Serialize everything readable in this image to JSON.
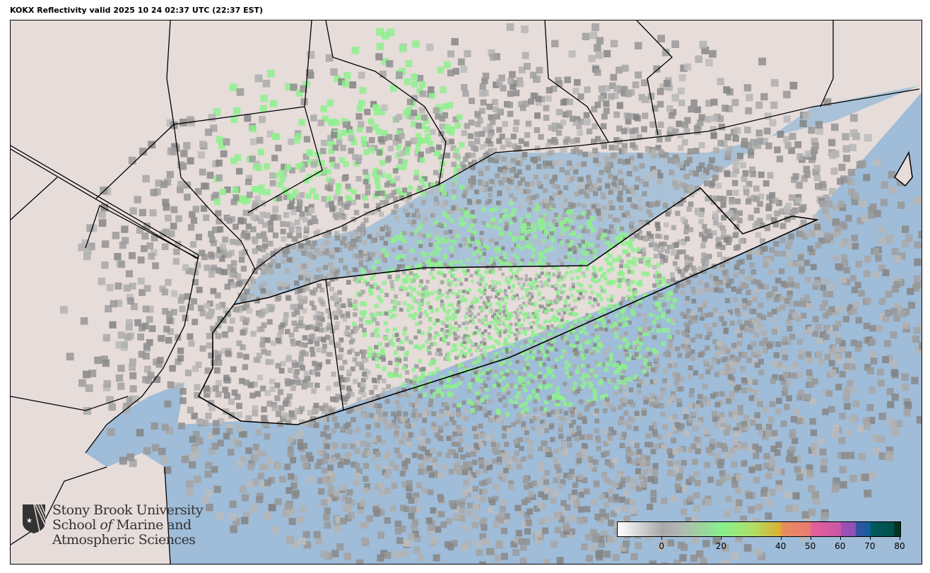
{
  "title": "KOKX Reflectivity valid 2025 10 24 02:37 UTC (22:37 EST)",
  "colors": {
    "ocean": "#9fbcd8",
    "land": "#e6dcd9",
    "border": "#000000",
    "echo_gray": "#9a9a9a",
    "echo_green": "#8ef08e"
  },
  "logo": {
    "line1": "Stony Brook University",
    "line2a": "School ",
    "line2b": "of",
    "line2c": " Marine and",
    "line3": "Atmospheric Sciences"
  },
  "colorbar": {
    "units_range": [
      -15,
      80
    ],
    "ticks": [
      "0",
      "20",
      "40",
      "50",
      "60",
      "70",
      "80"
    ],
    "stops": [
      {
        "v": -15,
        "c": "#ffffff"
      },
      {
        "v": 0,
        "c": "#a8a8a8"
      },
      {
        "v": 5,
        "c": "#b4b4b4"
      },
      {
        "v": 20,
        "c": "#88f08e"
      },
      {
        "v": 30,
        "c": "#aee068"
      },
      {
        "v": 40,
        "c": "#dfad2f"
      },
      {
        "v": 40.01,
        "c": "#e88f5e"
      },
      {
        "v": 50,
        "c": "#e97a72"
      },
      {
        "v": 50.01,
        "c": "#e45f98"
      },
      {
        "v": 60,
        "c": "#c957a8"
      },
      {
        "v": 60.01,
        "c": "#a050b0"
      },
      {
        "v": 65,
        "c": "#8a52b6"
      },
      {
        "v": 65.01,
        "c": "#3a52a0"
      },
      {
        "v": 70,
        "c": "#11609a"
      },
      {
        "v": 70.01,
        "c": "#005a5c"
      },
      {
        "v": 78,
        "c": "#00504a"
      },
      {
        "v": 78.01,
        "c": "#00331f"
      },
      {
        "v": 80,
        "c": "#00331f"
      }
    ]
  }
}
